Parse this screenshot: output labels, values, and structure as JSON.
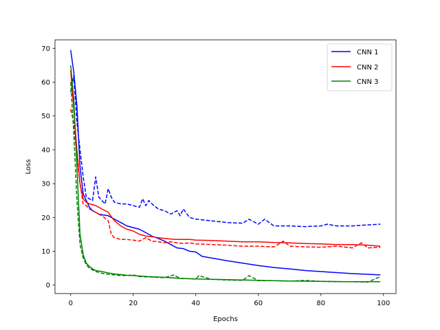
{
  "chart_data": {
    "type": "line",
    "xlabel": "Epochs",
    "ylabel": "Loss",
    "xlim": [
      -5,
      104
    ],
    "ylim": [
      -2.5,
      72.5
    ],
    "xticks": [
      0,
      20,
      40,
      60,
      80,
      100
    ],
    "yticks": [
      0,
      10,
      20,
      30,
      40,
      50,
      60,
      70
    ],
    "grid": false,
    "legend_position": "upper right",
    "legend": [
      "CNN 1",
      "CNN 2",
      "CNN 3"
    ],
    "colors": {
      "CNN 1": "#0000ff",
      "CNN 2": "#ff0000",
      "CNN 3": "#008000"
    },
    "series": [
      {
        "name": "CNN 1",
        "style": "solid",
        "points": [
          [
            0,
            69.5
          ],
          [
            1,
            63
          ],
          [
            2,
            53
          ],
          [
            3,
            35
          ],
          [
            4,
            27
          ],
          [
            5,
            25
          ],
          [
            6,
            23
          ],
          [
            7,
            22
          ],
          [
            8,
            21.5
          ],
          [
            9,
            21
          ],
          [
            10,
            20.8
          ],
          [
            12,
            20.5
          ],
          [
            14,
            19.5
          ],
          [
            16,
            18.5
          ],
          [
            18,
            17.5
          ],
          [
            20,
            17
          ],
          [
            22,
            16.5
          ],
          [
            24,
            15.5
          ],
          [
            26,
            14.5
          ],
          [
            28,
            13.8
          ],
          [
            30,
            13
          ],
          [
            32,
            12
          ],
          [
            34,
            11
          ],
          [
            36,
            10.8
          ],
          [
            38,
            10
          ],
          [
            40,
            9.8
          ],
          [
            42,
            8.5
          ],
          [
            45,
            8
          ],
          [
            50,
            7.2
          ],
          [
            55,
            6.5
          ],
          [
            60,
            5.8
          ],
          [
            65,
            5.2
          ],
          [
            70,
            4.8
          ],
          [
            75,
            4.3
          ],
          [
            80,
            4
          ],
          [
            85,
            3.7
          ],
          [
            90,
            3.4
          ],
          [
            95,
            3.2
          ],
          [
            99,
            3
          ]
        ]
      },
      {
        "name": "CNN 1 (dashed)",
        "style": "dashed",
        "points": [
          [
            0,
            57
          ],
          [
            1,
            62
          ],
          [
            2,
            48
          ],
          [
            3,
            40
          ],
          [
            4,
            32
          ],
          [
            5,
            26
          ],
          [
            6,
            25.5
          ],
          [
            7,
            25
          ],
          [
            8,
            32
          ],
          [
            9,
            26
          ],
          [
            10,
            25
          ],
          [
            11,
            24
          ],
          [
            12,
            28.5
          ],
          [
            13,
            26
          ],
          [
            14,
            24.5
          ],
          [
            16,
            24
          ],
          [
            18,
            24
          ],
          [
            20,
            23.5
          ],
          [
            22,
            23
          ],
          [
            23,
            25.5
          ],
          [
            24,
            23.5
          ],
          [
            25,
            25
          ],
          [
            26,
            24
          ],
          [
            28,
            22.5
          ],
          [
            30,
            22
          ],
          [
            32,
            21
          ],
          [
            34,
            22
          ],
          [
            35,
            20.5
          ],
          [
            36,
            22.5
          ],
          [
            38,
            20
          ],
          [
            40,
            19.5
          ],
          [
            45,
            19
          ],
          [
            50,
            18.5
          ],
          [
            55,
            18.3
          ],
          [
            57,
            19.5
          ],
          [
            60,
            18
          ],
          [
            62,
            19.5
          ],
          [
            65,
            17.5
          ],
          [
            70,
            17.5
          ],
          [
            75,
            17.3
          ],
          [
            80,
            17.5
          ],
          [
            82,
            18
          ],
          [
            85,
            17.5
          ],
          [
            90,
            17.5
          ],
          [
            95,
            17.8
          ],
          [
            99,
            18
          ]
        ]
      },
      {
        "name": "CNN 2",
        "style": "solid",
        "points": [
          [
            0,
            63.5
          ],
          [
            1,
            52
          ],
          [
            2,
            40
          ],
          [
            3,
            30
          ],
          [
            4,
            25.5
          ],
          [
            5,
            24.5
          ],
          [
            6,
            24
          ],
          [
            7,
            23.8
          ],
          [
            8,
            23.5
          ],
          [
            9,
            23
          ],
          [
            10,
            22.5
          ],
          [
            12,
            21.5
          ],
          [
            14,
            19
          ],
          [
            16,
            17.5
          ],
          [
            18,
            16.5
          ],
          [
            20,
            16
          ],
          [
            22,
            15
          ],
          [
            24,
            14.5
          ],
          [
            26,
            14.3
          ],
          [
            28,
            14
          ],
          [
            30,
            13.8
          ],
          [
            32,
            13.6
          ],
          [
            34,
            13.5
          ],
          [
            36,
            13.5
          ],
          [
            38,
            13.5
          ],
          [
            40,
            13.3
          ],
          [
            45,
            13.2
          ],
          [
            50,
            13
          ],
          [
            55,
            12.8
          ],
          [
            60,
            12.8
          ],
          [
            65,
            12.6
          ],
          [
            70,
            12.5
          ],
          [
            75,
            12.3
          ],
          [
            80,
            12.2
          ],
          [
            85,
            12
          ],
          [
            90,
            12
          ],
          [
            95,
            11.8
          ],
          [
            99,
            11.5
          ]
        ]
      },
      {
        "name": "CNN 2 (dashed)",
        "style": "dashed",
        "points": [
          [
            0,
            52
          ],
          [
            1,
            48
          ],
          [
            2,
            38
          ],
          [
            3,
            30
          ],
          [
            4,
            24
          ],
          [
            5,
            23.5
          ],
          [
            6,
            22.5
          ],
          [
            7,
            22
          ],
          [
            8,
            21.5
          ],
          [
            9,
            21
          ],
          [
            10,
            20.5
          ],
          [
            12,
            19
          ],
          [
            13,
            15
          ],
          [
            14,
            14
          ],
          [
            16,
            13.5
          ],
          [
            18,
            13.5
          ],
          [
            20,
            13.3
          ],
          [
            22,
            13
          ],
          [
            24,
            14
          ],
          [
            26,
            13
          ],
          [
            28,
            12.8
          ],
          [
            30,
            12.5
          ],
          [
            32,
            12.8
          ],
          [
            34,
            12.5
          ],
          [
            36,
            12.3
          ],
          [
            38,
            12.5
          ],
          [
            40,
            12.2
          ],
          [
            45,
            12
          ],
          [
            50,
            11.8
          ],
          [
            55,
            11.5
          ],
          [
            60,
            11.5
          ],
          [
            65,
            11.3
          ],
          [
            68,
            13
          ],
          [
            70,
            11.5
          ],
          [
            75,
            11.3
          ],
          [
            80,
            11.2
          ],
          [
            85,
            11.5
          ],
          [
            90,
            11
          ],
          [
            93,
            12.5
          ],
          [
            95,
            11
          ],
          [
            99,
            11.2
          ]
        ]
      },
      {
        "name": "CNN 3",
        "style": "solid",
        "points": [
          [
            0,
            65
          ],
          [
            1,
            55
          ],
          [
            2,
            35
          ],
          [
            3,
            15
          ],
          [
            4,
            9
          ],
          [
            5,
            6.5
          ],
          [
            6,
            5.5
          ],
          [
            7,
            4.8
          ],
          [
            8,
            4.3
          ],
          [
            10,
            4
          ],
          [
            12,
            3.6
          ],
          [
            14,
            3.3
          ],
          [
            16,
            3.1
          ],
          [
            18,
            2.9
          ],
          [
            20,
            2.8
          ],
          [
            25,
            2.5
          ],
          [
            30,
            2.3
          ],
          [
            35,
            2
          ],
          [
            40,
            1.8
          ],
          [
            45,
            1.7
          ],
          [
            50,
            1.6
          ],
          [
            55,
            1.5
          ],
          [
            60,
            1.4
          ],
          [
            65,
            1.3
          ],
          [
            70,
            1.2
          ],
          [
            80,
            1.1
          ],
          [
            90,
            1
          ],
          [
            99,
            1
          ]
        ]
      },
      {
        "name": "CNN 3 (dashed)",
        "style": "dashed",
        "points": [
          [
            0,
            60
          ],
          [
            1,
            45
          ],
          [
            2,
            25
          ],
          [
            3,
            12
          ],
          [
            4,
            8
          ],
          [
            5,
            6
          ],
          [
            6,
            5
          ],
          [
            7,
            4.5
          ],
          [
            8,
            4
          ],
          [
            10,
            3.5
          ],
          [
            12,
            3.2
          ],
          [
            14,
            3
          ],
          [
            16,
            2.8
          ],
          [
            18,
            2.8
          ],
          [
            20,
            3
          ],
          [
            22,
            2.5
          ],
          [
            25,
            2.4
          ],
          [
            30,
            2.2
          ],
          [
            33,
            3
          ],
          [
            35,
            2
          ],
          [
            40,
            1.8
          ],
          [
            41,
            2.8
          ],
          [
            45,
            1.7
          ],
          [
            50,
            1.5
          ],
          [
            55,
            1.4
          ],
          [
            57,
            2.8
          ],
          [
            60,
            1.3
          ],
          [
            65,
            1.3
          ],
          [
            70,
            1.2
          ],
          [
            75,
            1.4
          ],
          [
            80,
            1.1
          ],
          [
            85,
            1
          ],
          [
            90,
            1
          ],
          [
            95,
            0.9
          ],
          [
            99,
            2.5
          ]
        ]
      }
    ]
  }
}
